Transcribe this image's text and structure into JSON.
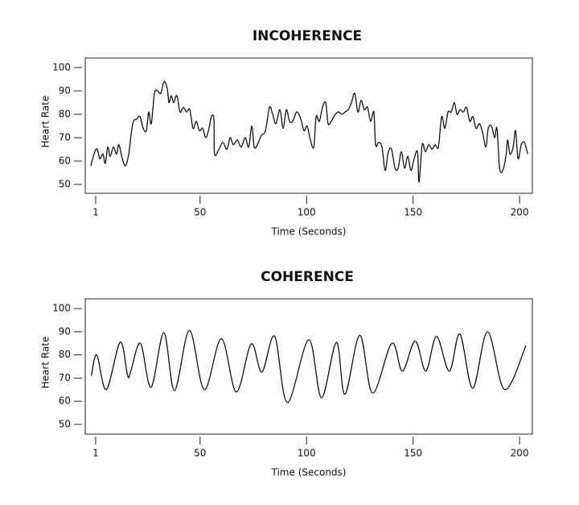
{
  "chart_data": [
    {
      "type": "line",
      "title": "INCOHERENCE",
      "x_label": "Time (Seconds)",
      "y_label": "Heart Rate",
      "xlim": [
        -3.9,
        206
      ],
      "ylim": [
        46.2,
        104.1
      ],
      "xticks": [
        1,
        50,
        100,
        150,
        200
      ],
      "yticks": [
        50,
        60,
        70,
        80,
        90,
        100
      ],
      "series": [
        {
          "color": "#111111",
          "x": [
            -1.3,
            0.6,
            1.8,
            2.9,
            4.4,
            5.5,
            6.7,
            7.8,
            9.3,
            10.8,
            11.9,
            13.5,
            15,
            16.5,
            18.4,
            20.3,
            21.8,
            23.3,
            24.8,
            25.9,
            27.1,
            28.6,
            30.1,
            31.6,
            33.1,
            34.6,
            35.4,
            36.5,
            37.6,
            39.1,
            40.6,
            42.1,
            43.7,
            45.2,
            46.7,
            48.2,
            49.7,
            51.2,
            52.7,
            54.2,
            55.3,
            56.5,
            56.8,
            58.8,
            60.7,
            62.6,
            64.1,
            65.6,
            67.5,
            69.3,
            71.2,
            72.8,
            74.3,
            75.4,
            76.9,
            78.8,
            80.7,
            82.6,
            84.1,
            85.6,
            87.5,
            89,
            90.5,
            92,
            93.5,
            95.4,
            97.3,
            98.8,
            100.3,
            101.8,
            103.4,
            104.5,
            106,
            107.5,
            109,
            110.1,
            111.6,
            113.5,
            115,
            116.6,
            118.1,
            119.6,
            121.1,
            122.6,
            124.1,
            125.6,
            127.1,
            128.6,
            130.1,
            131.6,
            132.4,
            133.9,
            135.4,
            136.9,
            138.4,
            139.9,
            141.5,
            143,
            144.5,
            146,
            147.5,
            149,
            150.5,
            152.1,
            152.8,
            154.3,
            155.8,
            157.4,
            158.9,
            160.4,
            161.9,
            163.4,
            164.9,
            166.4,
            167.9,
            169.4,
            170.6,
            172.1,
            173.6,
            175.1,
            176.6,
            178.1,
            179.6,
            181.2,
            182.7,
            184.2,
            185.3,
            186.8,
            188.3,
            189.4,
            190.6,
            192.1,
            193.6,
            194.4,
            195.5,
            197,
            198.1,
            199.3,
            200.8,
            202.3,
            203.8
          ],
          "values": [
            58,
            64,
            65,
            61,
            63,
            59,
            66,
            62,
            66,
            63,
            67,
            61,
            58,
            63,
            76,
            78,
            79,
            74,
            73,
            81,
            76,
            89,
            90,
            89,
            94,
            91,
            85,
            88,
            85,
            88,
            81,
            83,
            81,
            82,
            74,
            77,
            73,
            74,
            70,
            74,
            79,
            78,
            63,
            65,
            68,
            65,
            70,
            67,
            69,
            66,
            70,
            66,
            75,
            66,
            67,
            71,
            73,
            83,
            80,
            76,
            82,
            74,
            82,
            77,
            77,
            81,
            78,
            73,
            75,
            69,
            66,
            79,
            77,
            83,
            85,
            76,
            77,
            80,
            81,
            80,
            81,
            82,
            85,
            89,
            81,
            86,
            82,
            83,
            77,
            81,
            67,
            68,
            66,
            56,
            64,
            65,
            57,
            57,
            64,
            57,
            62,
            56,
            61,
            64,
            51,
            67,
            64,
            67,
            65,
            67,
            66,
            79,
            74,
            81,
            81,
            85,
            80,
            82,
            81,
            83,
            77,
            79,
            74,
            76,
            72,
            66,
            74,
            75,
            70,
            74,
            57,
            56,
            62,
            69,
            63,
            66,
            73,
            61,
            67,
            68,
            63
          ]
        }
      ]
    },
    {
      "type": "line",
      "title": "COHERENCE",
      "x_label": "Time (Seconds)",
      "y_label": "Heart Rate",
      "xlim": [
        -3.9,
        206
      ],
      "ylim": [
        45.8,
        104.2
      ],
      "xticks": [
        1,
        50,
        100,
        150,
        200
      ],
      "yticks": [
        50,
        60,
        70,
        80,
        90,
        100
      ],
      "series": [
        {
          "color": "#111111",
          "x": [
            -1,
            1.5,
            6,
            12.5,
            16,
            17.5,
            22,
            27,
            33,
            38,
            45,
            52,
            60,
            67,
            74,
            79,
            85,
            91,
            101,
            107,
            114,
            118,
            125,
            131,
            140,
            145,
            151,
            156,
            161,
            167,
            172,
            178,
            185,
            193,
            203
          ],
          "values": [
            71,
            80,
            65,
            85.5,
            71,
            73,
            85,
            66,
            89.6,
            64.6,
            90.6,
            65,
            87,
            64,
            84.7,
            72.6,
            88,
            59.4,
            86.5,
            61.5,
            85.4,
            63,
            88.5,
            63.5,
            85,
            73,
            86,
            73,
            88,
            73,
            89,
            65.6,
            90,
            65,
            84
          ]
        }
      ]
    }
  ]
}
